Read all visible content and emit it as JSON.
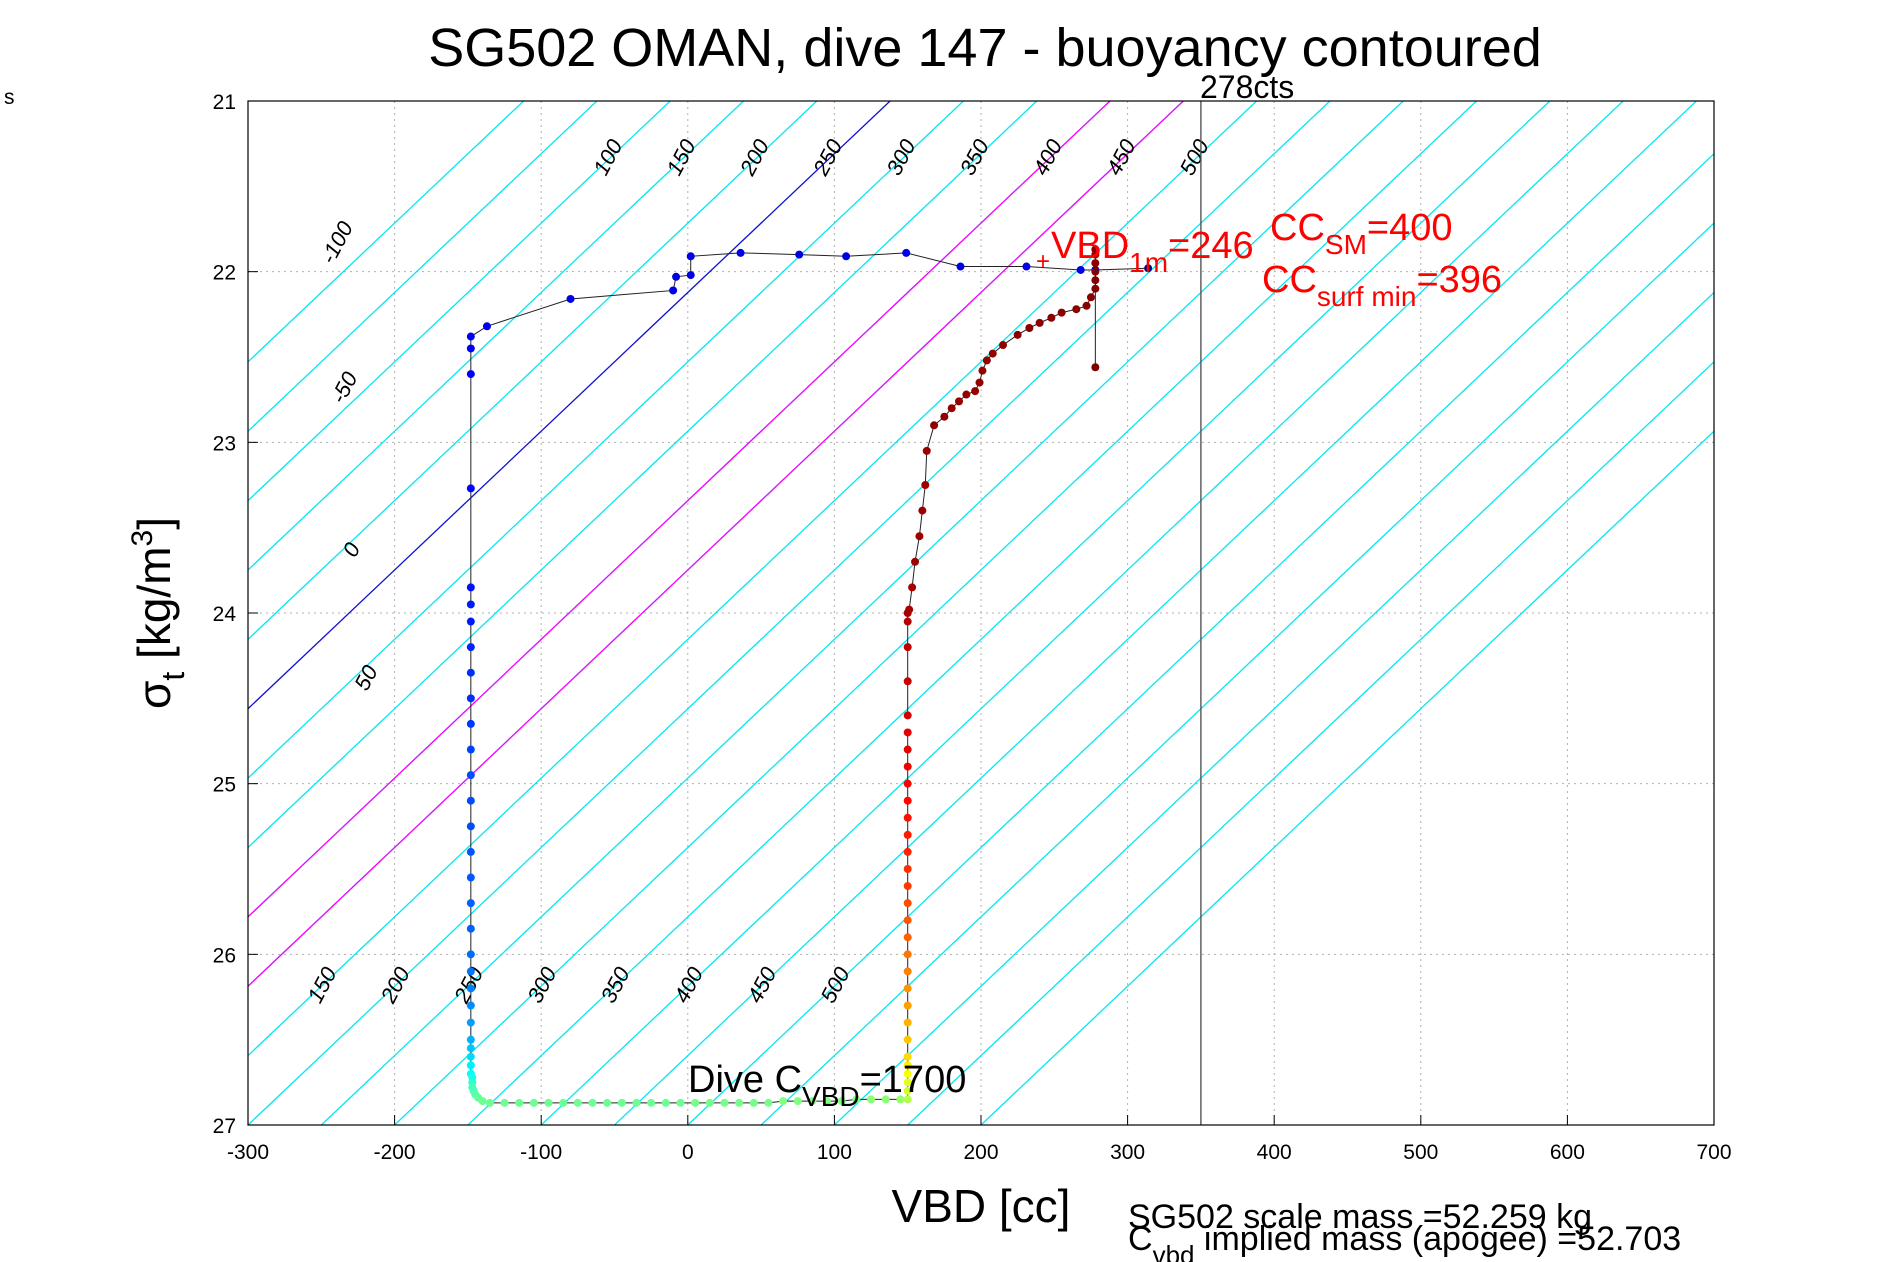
{
  "chart_data": {
    "type": "scatter",
    "title": "SG502 OMAN, dive 147 - buoyancy contoured",
    "xlabel": "VBD [cc]",
    "ylabel_main": "σ",
    "ylabel_sub": "t",
    "ylabel_units": " [kg/m",
    "ylabel_units_sup": "3",
    "ylabel_units_close": "]",
    "stray_label": "s",
    "xlim": [
      -300,
      700
    ],
    "ylim": [
      21,
      27
    ],
    "y_reversed": true,
    "grid": true,
    "x_ticks": [
      -300,
      -200,
      -100,
      0,
      100,
      200,
      300,
      400,
      500,
      600,
      700
    ],
    "x_tick_labels": [
      "-300",
      "-200",
      "-100",
      "0",
      "100",
      "200",
      "300",
      "400",
      "500",
      "600",
      "700"
    ],
    "y_ticks": [
      21,
      22,
      23,
      24,
      25,
      26,
      27
    ],
    "y_tick_labels": [
      "21",
      "22",
      "23",
      "24",
      "25",
      "26",
      "27"
    ],
    "vertical_line_x": 350,
    "vertical_line_label": "278cts",
    "contour_slope": 123,
    "contours_cyan": [
      -250,
      -200,
      -150,
      -100,
      -50,
      50,
      100,
      150,
      200,
      250,
      300,
      350,
      400,
      450,
      500,
      550,
      600,
      650,
      700,
      750,
      800
    ],
    "contours_magenta": [
      150,
      200
    ],
    "contours_blue": [
      0
    ],
    "contour_labels_top": [
      {
        "text": "-100",
        "x": -235,
        "y": 21.85
      },
      {
        "text": "-50",
        "x": -230,
        "y": 22.7
      },
      {
        "text": "0",
        "x": -225,
        "y": 23.65
      },
      {
        "text": "50",
        "x": -215,
        "y": 24.4
      },
      {
        "text": "100",
        "x": -50,
        "y": 21.35
      },
      {
        "text": "150",
        "x": 0,
        "y": 21.35
      },
      {
        "text": "200",
        "x": 50,
        "y": 21.35
      },
      {
        "text": "250",
        "x": 100,
        "y": 21.35
      },
      {
        "text": "300",
        "x": 150,
        "y": 21.35
      },
      {
        "text": "350",
        "x": 200,
        "y": 21.35
      },
      {
        "text": "400",
        "x": 250,
        "y": 21.35
      },
      {
        "text": "450",
        "x": 300,
        "y": 21.35
      },
      {
        "text": "500",
        "x": 350,
        "y": 21.35
      }
    ],
    "contour_labels_bottom": [
      {
        "text": "150",
        "x": -245,
        "y": 26.2
      },
      {
        "text": "200",
        "x": -195,
        "y": 26.2
      },
      {
        "text": "250",
        "x": -145,
        "y": 26.2
      },
      {
        "text": "300",
        "x": -95,
        "y": 26.2
      },
      {
        "text": "350",
        "x": -45,
        "y": 26.2
      },
      {
        "text": "400",
        "x": 5,
        "y": 26.2
      },
      {
        "text": "450",
        "x": 55,
        "y": 26.2
      },
      {
        "text": "500",
        "x": 105,
        "y": 26.2
      }
    ],
    "series": [
      {
        "x": [
          -148,
          -148,
          -148,
          -148,
          -148,
          -148,
          -148,
          -148,
          -148,
          -148,
          -148,
          -148,
          -148,
          -148,
          -148,
          -148,
          -148,
          -148,
          -148,
          -148,
          -148,
          -148,
          -148,
          -147,
          -147,
          -147,
          -146,
          -145,
          -143,
          -140,
          -135,
          -125,
          -115,
          -105,
          -95,
          -85,
          -75,
          -65,
          -55,
          -45,
          -35,
          -25,
          -15,
          -5,
          5,
          15,
          25,
          35,
          45,
          55,
          65,
          75,
          85,
          95,
          105,
          115,
          125,
          135,
          145
        ],
        "y": [
          24.05,
          24.2,
          24.35,
          24.5,
          24.65,
          24.8,
          24.95,
          25.1,
          25.25,
          25.4,
          25.55,
          25.7,
          25.85,
          26.0,
          26.1,
          26.2,
          26.3,
          26.4,
          26.5,
          26.55,
          26.6,
          26.65,
          26.7,
          26.72,
          26.75,
          26.78,
          26.8,
          26.82,
          26.84,
          26.86,
          26.87,
          26.87,
          26.87,
          26.87,
          26.87,
          26.87,
          26.87,
          26.87,
          26.87,
          26.87,
          26.87,
          26.87,
          26.87,
          26.87,
          26.87,
          26.87,
          26.87,
          26.87,
          26.87,
          26.87,
          26.86,
          26.86,
          26.86,
          26.86,
          26.86,
          26.85,
          26.85,
          26.85,
          26.85
        ],
        "values": [
          0.15,
          0.16,
          0.17,
          0.17,
          0.18,
          0.19,
          0.2,
          0.2,
          0.2,
          0.21,
          0.21,
          0.22,
          0.22,
          0.23,
          0.24,
          0.25,
          0.26,
          0.28,
          0.3,
          0.32,
          0.34,
          0.36,
          0.38,
          0.4,
          0.42,
          0.44,
          0.45,
          0.46,
          0.47,
          0.48,
          0.48,
          0.48,
          0.48,
          0.48,
          0.48,
          0.48,
          0.48,
          0.48,
          0.48,
          0.48,
          0.48,
          0.48,
          0.48,
          0.48,
          0.49,
          0.49,
          0.49,
          0.49,
          0.49,
          0.49,
          0.5,
          0.5,
          0.5,
          0.5,
          0.5,
          0.5,
          0.51,
          0.51,
          0.52
        ]
      },
      {
        "x": [
          150,
          150,
          150,
          150,
          150,
          150,
          150,
          150,
          150,
          150,
          150,
          150,
          150,
          150,
          150,
          150,
          150,
          150,
          150,
          150,
          150,
          150,
          150,
          150,
          150
        ],
        "y": [
          26.85,
          26.8,
          26.75,
          26.7,
          26.65,
          26.6,
          26.5,
          26.4,
          26.3,
          26.2,
          26.1,
          26.0,
          25.9,
          25.8,
          25.7,
          25.6,
          25.5,
          25.4,
          25.3,
          25.2,
          25.1,
          25.0,
          24.9,
          24.8,
          24.7
        ],
        "values": [
          0.55,
          0.58,
          0.6,
          0.62,
          0.64,
          0.66,
          0.68,
          0.7,
          0.72,
          0.73,
          0.75,
          0.76,
          0.78,
          0.79,
          0.8,
          0.82,
          0.83,
          0.84,
          0.85,
          0.86,
          0.87,
          0.88,
          0.89,
          0.9,
          0.9
        ]
      },
      {
        "name_hidden": "descent upper",
        "x": [
          -148,
          -148,
          -148,
          -148,
          -148,
          -148,
          -137,
          -80,
          -10,
          -8,
          2,
          2,
          36,
          76,
          108,
          149,
          186,
          231,
          268,
          278
        ],
        "y": [
          23.95,
          23.85,
          23.27,
          22.6,
          22.45,
          22.38,
          22.32,
          22.16,
          22.11,
          22.03,
          22.02,
          21.91,
          21.89,
          21.9,
          21.91,
          21.89,
          21.97,
          21.97,
          21.99,
          21.99
        ],
        "values": [
          0.15,
          0.14,
          0.13,
          0.12,
          0.12,
          0.12,
          0.11,
          0.1,
          0.1,
          0.1,
          0.1,
          0.1,
          0.1,
          0.1,
          0.1,
          0.1,
          0.1,
          0.1,
          0.1,
          0.1
        ]
      },
      {
        "name_hidden": "climb upper",
        "x": [
          150,
          150,
          150,
          150,
          150,
          151,
          153,
          155,
          158,
          160,
          162,
          163,
          168,
          175,
          180,
          185,
          190,
          196,
          199,
          201,
          204,
          208,
          215,
          225,
          233,
          240,
          248,
          255,
          265,
          272,
          275,
          278,
          278,
          278,
          278,
          278,
          278
        ],
        "y": [
          24.6,
          24.4,
          24.2,
          24.05,
          24.0,
          23.98,
          23.85,
          23.7,
          23.55,
          23.4,
          23.25,
          23.05,
          22.9,
          22.85,
          22.8,
          22.76,
          22.72,
          22.7,
          22.65,
          22.58,
          22.52,
          22.48,
          22.43,
          22.37,
          22.33,
          22.3,
          22.27,
          22.24,
          22.22,
          22.2,
          22.15,
          22.1,
          22.05,
          22.0,
          21.95,
          21.9,
          21.87
        ],
        "values": [
          0.92,
          0.93,
          0.94,
          0.95,
          0.96,
          0.96,
          0.96,
          0.97,
          0.97,
          0.97,
          0.97,
          0.97,
          0.98,
          0.98,
          0.98,
          0.98,
          0.98,
          0.98,
          0.98,
          0.98,
          0.98,
          0.98,
          0.98,
          0.99,
          0.99,
          0.99,
          0.99,
          0.99,
          0.99,
          0.99,
          0.99,
          0.99,
          0.99,
          0.99,
          0.99,
          0.99,
          0.99
        ]
      }
    ],
    "surface_points": {
      "x": [
        278,
        314
      ],
      "y": [
        22.56,
        21.98
      ]
    },
    "annotations": {
      "dive_c_main": "Dive C",
      "dive_c_sub": "VBD",
      "dive_c_value": "=1700",
      "vbd_main": "VBD",
      "vbd_sub": "1m",
      "vbd_value": "=246",
      "cc_sm_main": "CC",
      "cc_sm_sub": "SM",
      "cc_sm_value": "=400",
      "cc_surf_main": "CC",
      "cc_surf_sub": "surf min",
      "cc_surf_value": "=396",
      "scale_mass": "SG502 scale mass =52.259 kg",
      "cvbd_main": "C",
      "cvbd_sub": "vbd",
      "cvbd_rest": " implied mass (apogee) =52.703"
    }
  }
}
